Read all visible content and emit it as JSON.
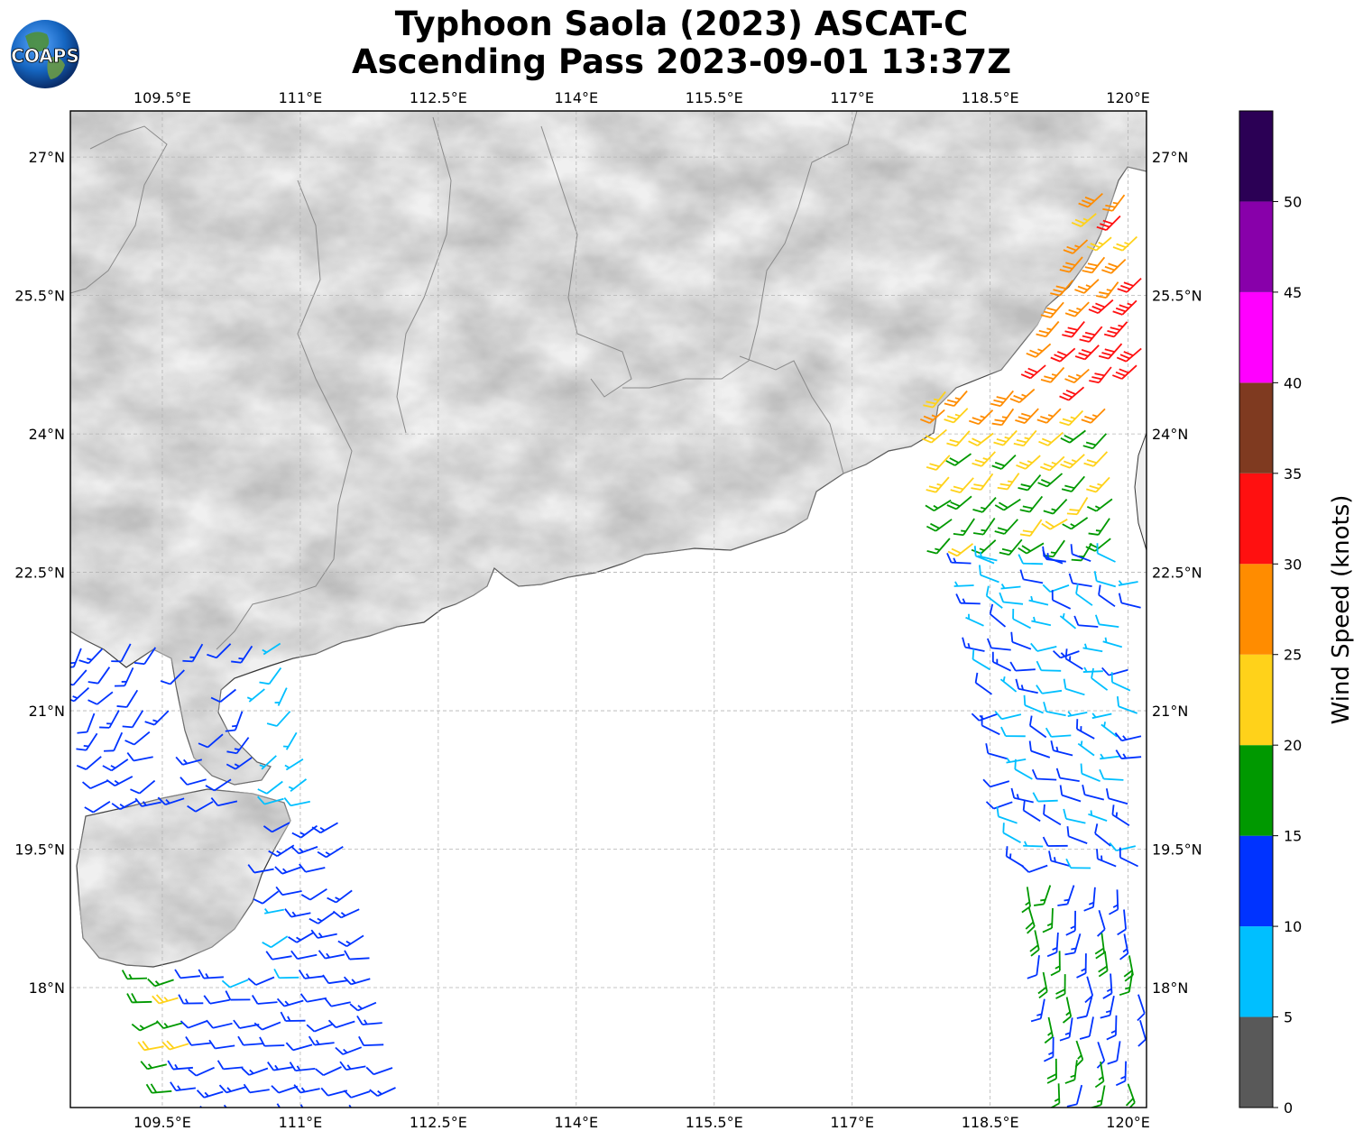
{
  "title_line1": "Typhoon Saola (2023) ASCAT-C",
  "title_line2": "Ascending Pass 2023-09-01 13:37Z",
  "logo_text": "COAPS",
  "map": {
    "lon_range": [
      108.5,
      120.2
    ],
    "lat_range": [
      16.7,
      27.5
    ],
    "lon_ticks": [
      "109.5°E",
      "111°E",
      "112.5°E",
      "114°E",
      "115.5°E",
      "117°E",
      "118.5°E",
      "120°E"
    ],
    "lat_ticks": [
      "27°N",
      "25.5°N",
      "24°N",
      "22.5°N",
      "21°N",
      "19.5°N",
      "18°N"
    ],
    "gridlines": true
  },
  "colorbar": {
    "label": "Wind Speed (knots)",
    "ticks": [
      "0",
      "5",
      "10",
      "15",
      "20",
      "25",
      "30",
      "35",
      "40",
      "45",
      "50"
    ],
    "bins": [
      {
        "min": 0,
        "max": 5,
        "color": "#595959"
      },
      {
        "min": 5,
        "max": 10,
        "color": "#00bfff"
      },
      {
        "min": 10,
        "max": 15,
        "color": "#0033ff"
      },
      {
        "min": 15,
        "max": 20,
        "color": "#009900"
      },
      {
        "min": 20,
        "max": 25,
        "color": "#ffd21a"
      },
      {
        "min": 25,
        "max": 30,
        "color": "#ff8c00"
      },
      {
        "min": 30,
        "max": 35,
        "color": "#ff1010"
      },
      {
        "min": 35,
        "max": 40,
        "color": "#7f3a20"
      },
      {
        "min": 40,
        "max": 45,
        "color": "#ff00ff"
      },
      {
        "min": 45,
        "max": 50,
        "color": "#8800aa"
      },
      {
        "min": 50,
        "max": 55,
        "color": "#2b0055"
      }
    ]
  },
  "wind_swaths": {
    "west_swath": {
      "lon_range": [
        108.5,
        112.3
      ],
      "lat_range": [
        16.7,
        21.7
      ],
      "predominant_speed_kt": "10-15",
      "note_color_regions": [
        "5-10 near coast",
        "15-25 in southwest"
      ]
    },
    "east_swath": {
      "lon_range": [
        118.0,
        120.2
      ],
      "lat_range": [
        16.7,
        26.8
      ],
      "predominant_speed_kt": "5-30"
    }
  }
}
